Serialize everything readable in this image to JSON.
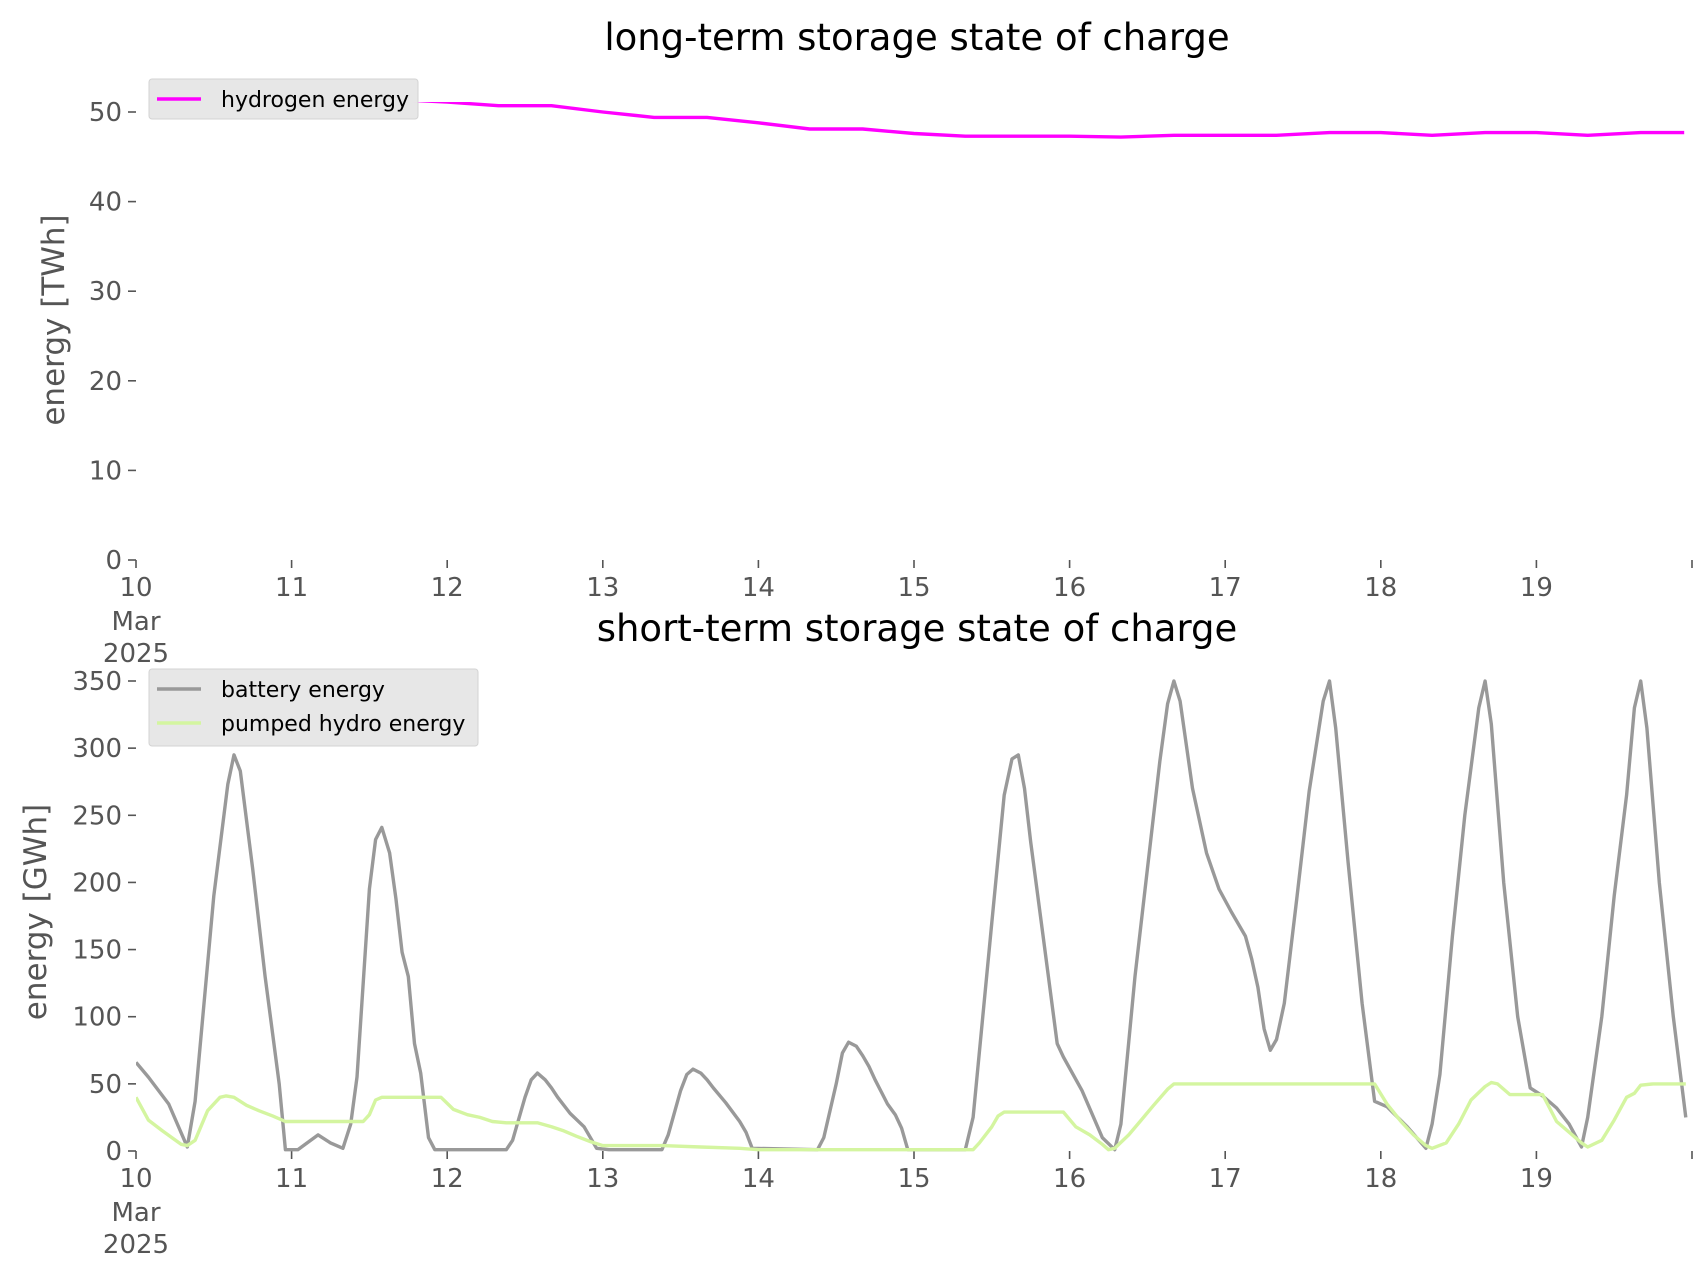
{
  "chart_data": [
    {
      "type": "line",
      "title": "long-term storage state of charge",
      "xlabel": "",
      "ylabel": "energy [TWh]",
      "x_ticks": [
        "10",
        "11",
        "12",
        "13",
        "14",
        "15",
        "16",
        "17",
        "18",
        "19"
      ],
      "x_tick_sub": [
        "Mar",
        "2025"
      ],
      "xlim": [
        10,
        20
      ],
      "y_ticks": [
        "0",
        "10",
        "20",
        "30",
        "40",
        "50"
      ],
      "ylim": [
        0,
        50
      ],
      "grid": false,
      "legend_position": "upper left",
      "series": [
        {
          "name": "hydrogen energy",
          "color": "#ff00ff",
          "x": [
            10,
            10.33,
            10.67,
            11,
            11.33,
            11.67,
            12,
            12.33,
            12.67,
            13,
            13.33,
            13.67,
            14,
            14.33,
            14.67,
            15,
            15.33,
            15.67,
            16,
            16.33,
            16.67,
            17,
            17.33,
            17.67,
            18,
            18.33,
            18.67,
            19,
            19.33,
            19.67,
            19.95
          ],
          "values": [
            52.5,
            52.2,
            52.0,
            51.8,
            51.6,
            51.4,
            51.1,
            50.7,
            50.7,
            50.0,
            49.4,
            49.4,
            48.8,
            48.1,
            48.1,
            47.6,
            47.3,
            47.3,
            47.3,
            47.2,
            47.4,
            47.4,
            47.4,
            47.7,
            47.7,
            47.4,
            47.7,
            47.7,
            47.4,
            47.7,
            47.7
          ]
        }
      ]
    },
    {
      "type": "line",
      "title": "short-term storage state of charge",
      "xlabel": "",
      "ylabel": "energy [GWh]",
      "x_ticks": [
        "10",
        "11",
        "12",
        "13",
        "14",
        "15",
        "16",
        "17",
        "18",
        "19"
      ],
      "x_tick_sub": [
        "Mar",
        "2025"
      ],
      "xlim": [
        10,
        20
      ],
      "y_ticks": [
        "0",
        "50",
        "100",
        "150",
        "200",
        "250",
        "300",
        "350"
      ],
      "ylim": [
        0,
        350
      ],
      "grid": false,
      "legend_position": "upper left",
      "series": [
        {
          "name": "battery energy",
          "color": "#999999",
          "x": [
            10,
            10.08,
            10.21,
            10.33,
            10.38,
            10.5,
            10.59,
            10.63,
            10.67,
            10.75,
            10.83,
            10.92,
            10.96,
            11.04,
            11.17,
            11.25,
            11.33,
            11.38,
            11.42,
            11.5,
            11.54,
            11.58,
            11.63,
            11.67,
            11.71,
            11.75,
            11.79,
            11.83,
            11.88,
            11.92,
            11.96,
            12.38,
            12.42,
            12.5,
            12.54,
            12.58,
            12.63,
            12.67,
            12.71,
            12.79,
            12.88,
            12.96,
            13.04,
            13.38,
            13.42,
            13.5,
            13.54,
            13.58,
            13.63,
            13.67,
            13.71,
            13.79,
            13.88,
            13.92,
            13.96,
            14.38,
            14.42,
            14.5,
            14.54,
            14.58,
            14.63,
            14.67,
            14.71,
            14.75,
            14.79,
            14.83,
            14.88,
            14.92,
            14.96,
            15.33,
            15.38,
            15.5,
            15.58,
            15.63,
            15.67,
            15.71,
            15.75,
            15.83,
            15.92,
            15.96,
            16.08,
            16.21,
            16.29,
            16.33,
            16.42,
            16.58,
            16.63,
            16.67,
            16.71,
            16.79,
            16.88,
            16.96,
            17.04,
            17.13,
            17.17,
            17.21,
            17.25,
            17.29,
            17.33,
            17.38,
            17.46,
            17.54,
            17.63,
            17.67,
            17.71,
            17.79,
            17.88,
            17.96,
            18.04,
            18.17,
            18.29,
            18.33,
            18.38,
            18.46,
            18.54,
            18.63,
            18.67,
            18.71,
            18.79,
            18.88,
            18.96,
            19.04,
            19.13,
            19.21,
            19.29,
            19.33,
            19.42,
            19.5,
            19.58,
            19.63,
            19.67,
            19.71,
            19.79,
            19.88,
            19.96
          ],
          "values": [
            66,
            55,
            35,
            3,
            37,
            190,
            273,
            295,
            283,
            210,
            130,
            50,
            1,
            1,
            12,
            6,
            2,
            20,
            55,
            195,
            232,
            241,
            222,
            188,
            148,
            130,
            80,
            58,
            10,
            1,
            1,
            1,
            8,
            40,
            53,
            58,
            53,
            47,
            40,
            28,
            18,
            2,
            1,
            1,
            12,
            45,
            57,
            61,
            58,
            53,
            47,
            36,
            22,
            14,
            2,
            1,
            10,
            50,
            73,
            81,
            78,
            71,
            63,
            53,
            44,
            35,
            27,
            17,
            1,
            1,
            25,
            170,
            265,
            292,
            295,
            270,
            230,
            160,
            80,
            70,
            45,
            10,
            1,
            20,
            130,
            290,
            333,
            350,
            335,
            270,
            222,
            195,
            178,
            160,
            143,
            122,
            91,
            75,
            83,
            110,
            188,
            268,
            335,
            350,
            315,
            215,
            110,
            37,
            33,
            18,
            2,
            20,
            57,
            160,
            250,
            330,
            350,
            318,
            200,
            100,
            47,
            41,
            32,
            20,
            3,
            25,
            100,
            190,
            265,
            330,
            350,
            315,
            200,
            100,
            25
          ]
        },
        {
          "name": "pumped hydro energy",
          "color": "#d4f5a0",
          "x": [
            10,
            10.08,
            10.17,
            10.29,
            10.33,
            10.38,
            10.46,
            10.54,
            10.58,
            10.63,
            10.71,
            10.79,
            10.88,
            10.96,
            11.38,
            11.46,
            11.5,
            11.54,
            11.58,
            11.67,
            11.96,
            12.04,
            12.13,
            12.21,
            12.29,
            12.38,
            12.58,
            12.67,
            12.75,
            12.83,
            12.92,
            13.0,
            13.38,
            13.63,
            13.88,
            14.0,
            14.38,
            15.0,
            15.38,
            15.42,
            15.5,
            15.54,
            15.58,
            15.63,
            15.96,
            16.04,
            16.13,
            16.21,
            16.25,
            16.29,
            16.38,
            16.46,
            16.54,
            16.63,
            16.67,
            16.71,
            16.79,
            17.0,
            17.38,
            17.63,
            17.96,
            18.04,
            18.13,
            18.21,
            18.29,
            18.33,
            18.42,
            18.5,
            18.58,
            18.67,
            18.71,
            18.75,
            18.83,
            18.96,
            19.04,
            19.13,
            19.21,
            19.29,
            19.33,
            19.42,
            19.5,
            19.58,
            19.63,
            19.67,
            19.75,
            19.96
          ],
          "values": [
            40,
            23,
            15,
            5,
            4,
            8,
            30,
            40,
            41,
            40,
            34,
            30,
            26,
            22,
            22,
            22,
            27,
            38,
            40,
            40,
            40,
            31,
            27,
            25,
            22,
            21,
            21,
            18,
            15,
            11,
            7,
            4,
            4,
            3,
            2,
            1,
            1,
            1,
            1,
            6,
            18,
            26,
            29,
            29,
            29,
            18,
            12,
            5,
            1,
            2,
            12,
            23,
            34,
            46,
            50,
            50,
            50,
            50,
            50,
            50,
            50,
            35,
            22,
            12,
            4,
            2,
            6,
            20,
            38,
            48,
            51,
            50,
            42,
            42,
            42,
            22,
            14,
            6,
            3,
            8,
            23,
            40,
            43,
            49,
            50,
            50
          ]
        }
      ]
    }
  ]
}
